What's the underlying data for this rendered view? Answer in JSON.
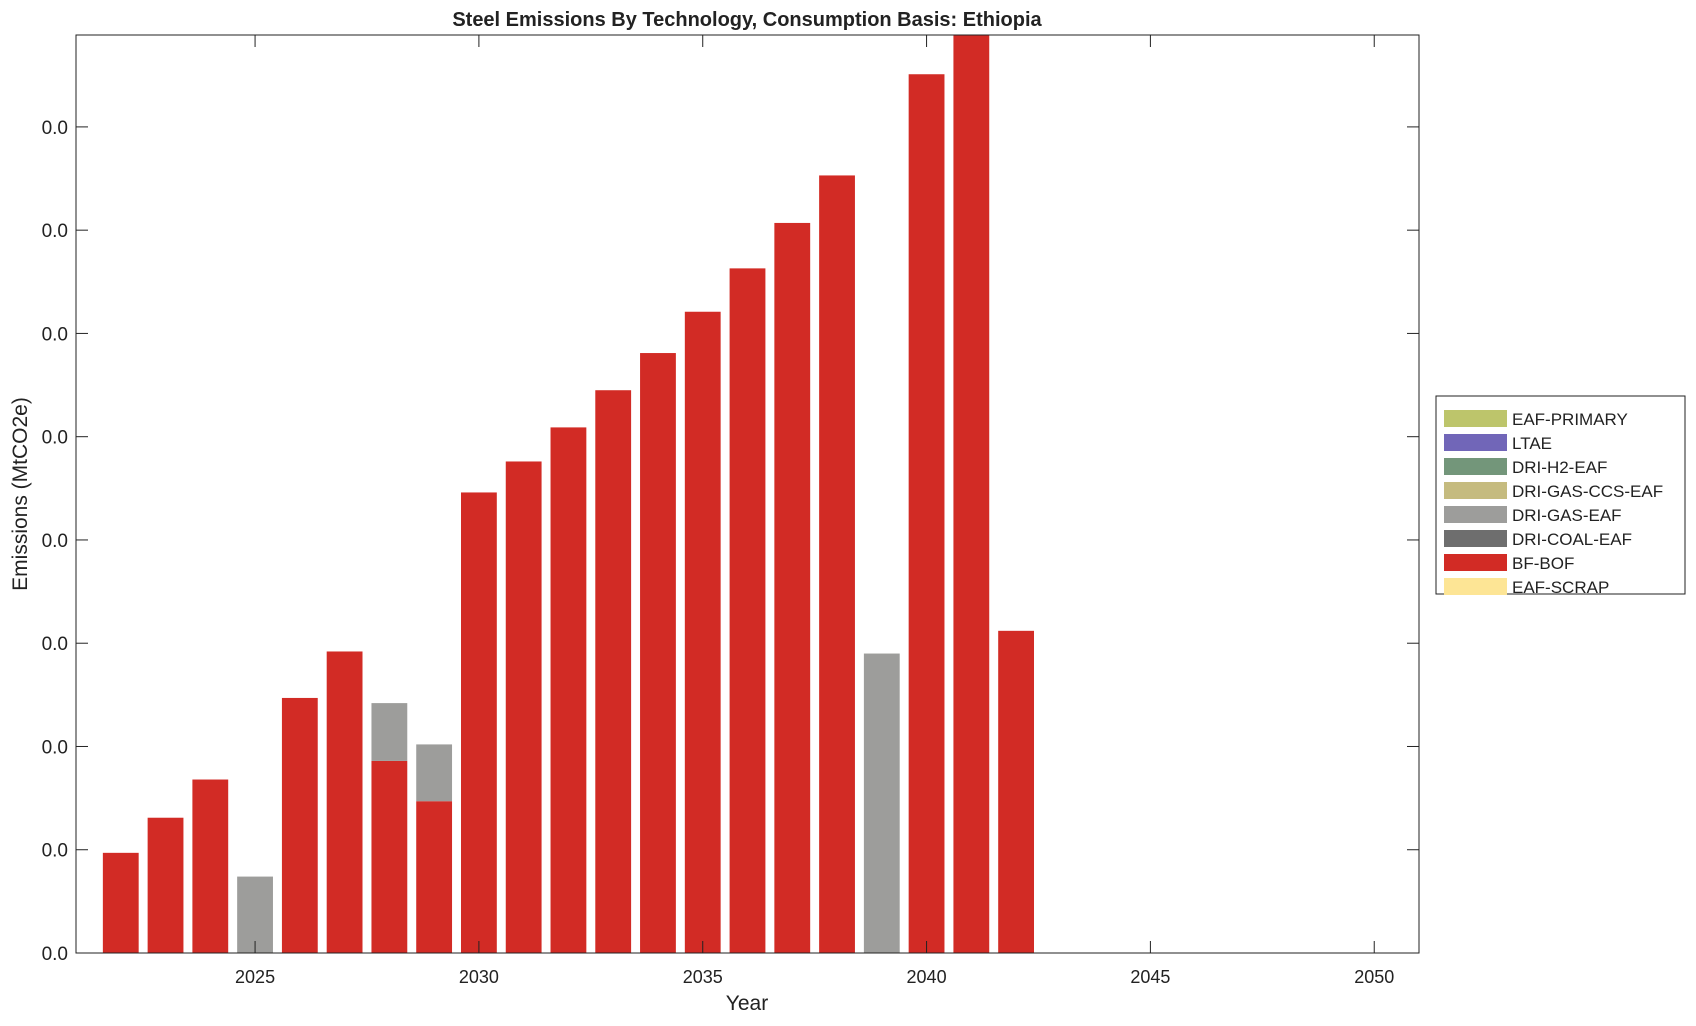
{
  "chart_data": {
    "type": "bar",
    "stacked": true,
    "title": "Steel Emissions By Technology, Consumption Basis: Ethiopia",
    "xlabel": "Year",
    "ylabel": "Emissions (MtCO2e)",
    "xlim": [
      2021,
      2051
    ],
    "ylim": [
      0,
      0.0889
    ],
    "xticks": [
      2025,
      2030,
      2035,
      2040,
      2045,
      2050
    ],
    "xtick_labels": [
      "2025",
      "2030",
      "2035",
      "2040",
      "2045",
      "2050"
    ],
    "yticks": [
      0,
      0.01,
      0.02,
      0.03,
      0.04,
      0.05,
      0.06,
      0.07,
      0.08
    ],
    "ytick_labels": [
      "0.0",
      "0.0",
      "0.0",
      "0.0",
      "0.0",
      "0.0",
      "0.0",
      "0.0",
      "0.0"
    ],
    "grid": false,
    "legend_position": "right",
    "categories": [
      2022,
      2023,
      2024,
      2025,
      2026,
      2027,
      2028,
      2029,
      2030,
      2031,
      2032,
      2033,
      2034,
      2035,
      2036,
      2037,
      2038,
      2039,
      2040,
      2041,
      2042
    ],
    "series": [
      {
        "name": "EAF-PRIMARY",
        "color": "#bdc56b",
        "values": [
          0,
          0,
          0,
          0,
          0,
          0,
          0,
          0,
          0,
          0,
          0,
          0,
          0,
          0,
          0,
          0,
          0,
          0,
          0,
          0,
          0
        ]
      },
      {
        "name": "LTAE",
        "color": "#7166b8",
        "values": [
          0,
          0,
          0,
          0,
          0,
          0,
          0,
          0,
          0,
          0,
          0,
          0,
          0,
          0,
          0,
          0,
          0,
          0,
          0,
          0,
          0
        ]
      },
      {
        "name": "DRI-H2-EAF",
        "color": "#73967a",
        "values": [
          0,
          0,
          0,
          0,
          0,
          0,
          0,
          0,
          0,
          0,
          0,
          0,
          0,
          0,
          0,
          0,
          0,
          0,
          0,
          0,
          0
        ]
      },
      {
        "name": "DRI-GAS-CCS-EAF",
        "color": "#c5bb7f",
        "values": [
          0,
          0,
          0,
          0,
          0,
          0,
          0,
          0,
          0,
          0,
          0,
          0,
          0,
          0,
          0,
          0,
          0,
          0,
          0,
          0,
          0
        ]
      },
      {
        "name": "DRI-GAS-EAF",
        "color": "#9d9d9b",
        "values": [
          0,
          0,
          0,
          0.0074,
          0,
          0,
          0.0056,
          0.0055,
          0,
          0,
          0,
          0,
          0,
          0,
          0,
          0,
          0,
          0.029,
          0,
          0,
          0
        ]
      },
      {
        "name": "DRI-COAL-EAF",
        "color": "#6e6e6e",
        "values": [
          0,
          0,
          0,
          0,
          0,
          0,
          0,
          0,
          0,
          0,
          0,
          0,
          0,
          0,
          0,
          0,
          0,
          0,
          0,
          0,
          0
        ]
      },
      {
        "name": "BF-BOF",
        "color": "#d22b25",
        "values": [
          0.0097,
          0.0131,
          0.0168,
          0,
          0.0247,
          0.0292,
          0.0186,
          0.0147,
          0.0446,
          0.0476,
          0.0509,
          0.0545,
          0.0581,
          0.0621,
          0.0663,
          0.0707,
          0.0753,
          0,
          0.0851,
          0.09,
          0.0312
        ]
      },
      {
        "name": "EAF-SCRAP",
        "color": "#fde595",
        "values": [
          0,
          0,
          0,
          0,
          0,
          0,
          0,
          0,
          0,
          0,
          0,
          0,
          0,
          0,
          0,
          0,
          0,
          0,
          0,
          0,
          0
        ]
      }
    ],
    "bar_width": 0.8
  }
}
